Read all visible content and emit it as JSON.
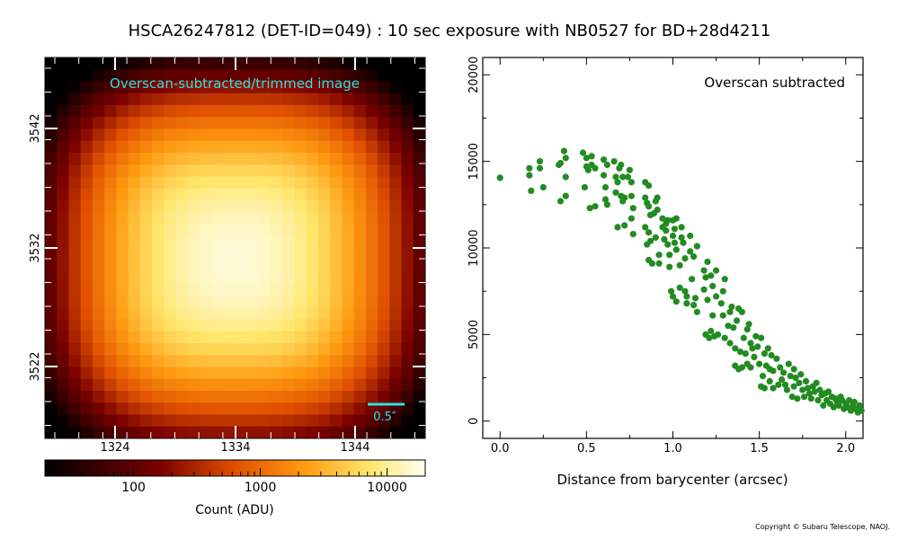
{
  "title": "HSCA26247812 (DET-ID=049) :  10 sec exposure with NB0527 for BD+28d4211",
  "copyright": "Copyright © Subaru Telescope, NAOJ.",
  "colors": {
    "points": "#228b22",
    "cyan_text": "#2fe0e0",
    "scalebar": "#2fe0e0"
  },
  "image_panel": {
    "label": "Overscan-subtracted/trimmed image",
    "x_ticks": [
      "1324",
      "1334",
      "1344"
    ],
    "y_ticks": [
      "3542",
      "3532",
      "3522"
    ],
    "scale_label": "0.5″",
    "colormap": "afmhot",
    "colorbar": {
      "scale": "log",
      "range": [
        20,
        20000
      ],
      "ticks": [
        "100",
        "1000",
        "10000"
      ],
      "label": "Count (ADU)"
    }
  },
  "chart_data": {
    "type": "scatter",
    "title": "",
    "annotation": "Overscan subtracted",
    "xlabel": "Distance from barycenter (arcsec)",
    "ylabel": "",
    "xlim": [
      -0.1,
      2.1
    ],
    "ylim": [
      -1000,
      21000
    ],
    "x_ticks": [
      "0.0",
      "0.5",
      "1.0",
      "1.5",
      "2.0"
    ],
    "y_ticks": [
      "0",
      "5000",
      "10000",
      "15000",
      "20000"
    ],
    "grid": false,
    "series": [
      {
        "points": [
          [
            0.0,
            14050
          ],
          [
            0.17,
            14600
          ],
          [
            0.17,
            14200
          ],
          [
            0.18,
            13300
          ],
          [
            0.23,
            15000
          ],
          [
            0.23,
            14600
          ],
          [
            0.25,
            13500
          ],
          [
            0.34,
            14800
          ],
          [
            0.35,
            14900
          ],
          [
            0.35,
            12700
          ],
          [
            0.37,
            15600
          ],
          [
            0.38,
            15200
          ],
          [
            0.38,
            14100
          ],
          [
            0.38,
            13000
          ],
          [
            0.48,
            15500
          ],
          [
            0.49,
            13500
          ],
          [
            0.5,
            15200
          ],
          [
            0.5,
            14700
          ],
          [
            0.51,
            14500
          ],
          [
            0.52,
            12300
          ],
          [
            0.53,
            15300
          ],
          [
            0.53,
            14800
          ],
          [
            0.55,
            14600
          ],
          [
            0.55,
            12400
          ],
          [
            0.6,
            15100
          ],
          [
            0.6,
            14200
          ],
          [
            0.61,
            13500
          ],
          [
            0.61,
            12800
          ],
          [
            0.62,
            14800
          ],
          [
            0.62,
            12500
          ],
          [
            0.66,
            15000
          ],
          [
            0.67,
            14100
          ],
          [
            0.67,
            13200
          ],
          [
            0.68,
            13800
          ],
          [
            0.68,
            11200
          ],
          [
            0.69,
            14600
          ],
          [
            0.7,
            14800
          ],
          [
            0.7,
            13000
          ],
          [
            0.71,
            14100
          ],
          [
            0.71,
            12700
          ],
          [
            0.72,
            12900
          ],
          [
            0.72,
            11300
          ],
          [
            0.74,
            14100
          ],
          [
            0.75,
            14500
          ],
          [
            0.76,
            13800
          ],
          [
            0.76,
            13000
          ],
          [
            0.76,
            11700
          ],
          [
            0.77,
            12300
          ],
          [
            0.77,
            10800
          ],
          [
            0.84,
            13800
          ],
          [
            0.84,
            12900
          ],
          [
            0.84,
            11200
          ],
          [
            0.85,
            12600
          ],
          [
            0.85,
            10200
          ],
          [
            0.86,
            13600
          ],
          [
            0.86,
            12400
          ],
          [
            0.86,
            10900
          ],
          [
            0.86,
            9300
          ],
          [
            0.87,
            11900
          ],
          [
            0.87,
            10400
          ],
          [
            0.88,
            9100
          ],
          [
            0.89,
            12000
          ],
          [
            0.9,
            10600
          ],
          [
            0.9,
            12700
          ],
          [
            0.91,
            12900
          ],
          [
            0.91,
            12200
          ],
          [
            0.92,
            9600
          ],
          [
            0.92,
            9100
          ],
          [
            0.94,
            11700
          ],
          [
            0.94,
            11200
          ],
          [
            0.95,
            10500
          ],
          [
            0.96,
            11400
          ],
          [
            0.96,
            11000
          ],
          [
            0.97,
            11600
          ],
          [
            0.97,
            10200
          ],
          [
            0.98,
            9600
          ],
          [
            0.98,
            8900
          ],
          [
            0.99,
            7500
          ],
          [
            1.0,
            11600
          ],
          [
            1.0,
            10700
          ],
          [
            1.0,
            7200
          ],
          [
            1.01,
            11100
          ],
          [
            1.01,
            10300
          ],
          [
            1.02,
            11700
          ],
          [
            1.02,
            9900
          ],
          [
            1.02,
            6900
          ],
          [
            1.04,
            9000
          ],
          [
            1.04,
            7700
          ],
          [
            1.05,
            11200
          ],
          [
            1.05,
            10600
          ],
          [
            1.06,
            10300
          ],
          [
            1.07,
            9400
          ],
          [
            1.07,
            7500
          ],
          [
            1.08,
            7200
          ],
          [
            1.08,
            6800
          ],
          [
            1.1,
            10700
          ],
          [
            1.1,
            9800
          ],
          [
            1.11,
            8200
          ],
          [
            1.12,
            9500
          ],
          [
            1.12,
            6700
          ],
          [
            1.13,
            7100
          ],
          [
            1.14,
            10100
          ],
          [
            1.14,
            6300
          ],
          [
            1.18,
            8700
          ],
          [
            1.18,
            7600
          ],
          [
            1.19,
            8300
          ],
          [
            1.19,
            5000
          ],
          [
            1.2,
            9200
          ],
          [
            1.2,
            7000
          ],
          [
            1.21,
            4800
          ],
          [
            1.22,
            8400
          ],
          [
            1.22,
            5200
          ],
          [
            1.23,
            7800
          ],
          [
            1.23,
            6100
          ],
          [
            1.24,
            4900
          ],
          [
            1.25,
            8700
          ],
          [
            1.25,
            7200
          ],
          [
            1.26,
            5000
          ],
          [
            1.28,
            6800
          ],
          [
            1.29,
            7500
          ],
          [
            1.29,
            6100
          ],
          [
            1.3,
            8200
          ],
          [
            1.3,
            4800
          ],
          [
            1.32,
            5500
          ],
          [
            1.33,
            6300
          ],
          [
            1.33,
            4500
          ],
          [
            1.34,
            6600
          ],
          [
            1.35,
            5400
          ],
          [
            1.36,
            3200
          ],
          [
            1.36,
            4200
          ],
          [
            1.37,
            5800
          ],
          [
            1.38,
            6500
          ],
          [
            1.38,
            3000
          ],
          [
            1.39,
            4000
          ],
          [
            1.4,
            6300
          ],
          [
            1.4,
            3100
          ],
          [
            1.41,
            4800
          ],
          [
            1.42,
            3900
          ],
          [
            1.43,
            5300
          ],
          [
            1.43,
            3300
          ],
          [
            1.44,
            5600
          ],
          [
            1.45,
            4500
          ],
          [
            1.45,
            3100
          ],
          [
            1.46,
            4200
          ],
          [
            1.47,
            3700
          ],
          [
            1.48,
            4900
          ],
          [
            1.49,
            4300
          ],
          [
            1.5,
            3300
          ],
          [
            1.51,
            4800
          ],
          [
            1.51,
            2000
          ],
          [
            1.52,
            2600
          ],
          [
            1.53,
            3900
          ],
          [
            1.53,
            1900
          ],
          [
            1.54,
            3200
          ],
          [
            1.55,
            4200
          ],
          [
            1.56,
            3000
          ],
          [
            1.56,
            2300
          ],
          [
            1.57,
            3800
          ],
          [
            1.58,
            1900
          ],
          [
            1.58,
            2900
          ],
          [
            1.6,
            3600
          ],
          [
            1.61,
            2100
          ],
          [
            1.62,
            3100
          ],
          [
            1.63,
            2400
          ],
          [
            1.64,
            2800
          ],
          [
            1.65,
            2100
          ],
          [
            1.66,
            1800
          ],
          [
            1.67,
            3300
          ],
          [
            1.68,
            2600
          ],
          [
            1.69,
            1400
          ],
          [
            1.7,
            3000
          ],
          [
            1.7,
            2000
          ],
          [
            1.71,
            2500
          ],
          [
            1.72,
            1300
          ],
          [
            1.73,
            2200
          ],
          [
            1.74,
            2700
          ],
          [
            1.75,
            1800
          ],
          [
            1.76,
            1400
          ],
          [
            1.77,
            2300
          ],
          [
            1.78,
            1900
          ],
          [
            1.79,
            1600
          ],
          [
            1.8,
            1300
          ],
          [
            1.81,
            2000
          ],
          [
            1.82,
            1700
          ],
          [
            1.83,
            2200
          ],
          [
            1.84,
            1200
          ],
          [
            1.85,
            1800
          ],
          [
            1.86,
            1500
          ],
          [
            1.87,
            900
          ],
          [
            1.88,
            1600
          ],
          [
            1.89,
            1200
          ],
          [
            1.9,
            1700
          ],
          [
            1.91,
            1000
          ],
          [
            1.92,
            1400
          ],
          [
            1.93,
            800
          ],
          [
            1.94,
            1300
          ],
          [
            1.95,
            1100
          ],
          [
            1.96,
            900
          ],
          [
            1.97,
            1400
          ],
          [
            1.98,
            1200
          ],
          [
            1.99,
            700
          ],
          [
            2.0,
            1000
          ],
          [
            2.01,
            800
          ],
          [
            2.02,
            1200
          ],
          [
            2.03,
            600
          ],
          [
            2.04,
            900
          ],
          [
            2.05,
            1100
          ],
          [
            2.06,
            700
          ],
          [
            2.07,
            500
          ],
          [
            2.08,
            900
          ],
          [
            2.09,
            600
          ]
        ]
      }
    ]
  }
}
